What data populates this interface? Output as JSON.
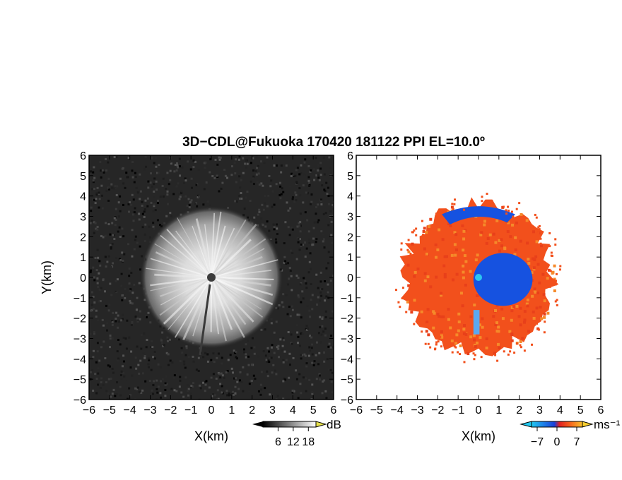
{
  "title": "3D−CDL@Fukuoka 170420 181122 PPI EL=10.0º",
  "chart_data": [
    {
      "type": "heatmap",
      "panel": "reflectivity",
      "xlabel": "X(km)",
      "ylabel": "Y(km)",
      "xlim": [
        -6,
        6
      ],
      "ylim": [
        -6,
        6
      ],
      "xticks": [
        "−6",
        "−5",
        "−4",
        "−3",
        "−2",
        "−1",
        "0",
        "1",
        "2",
        "3",
        "4",
        "5",
        "6"
      ],
      "yticks": [
        "6",
        "5",
        "4",
        "3",
        "2",
        "1",
        "0",
        "−1",
        "−2",
        "−3",
        "−4",
        "−5",
        "−6"
      ],
      "echo_radius_km": 3.5,
      "radar_position": [
        0,
        0
      ],
      "colorscale": "grayscale",
      "colorbar": {
        "unit": "dB",
        "ticks": [
          "6",
          "12",
          "18"
        ],
        "range": [
          0,
          21
        ]
      }
    },
    {
      "type": "heatmap",
      "panel": "doppler_velocity",
      "xlabel": "X(km)",
      "xlim": [
        -6,
        6
      ],
      "ylim": [
        -6,
        6
      ],
      "xticks": [
        "−6",
        "−5",
        "−4",
        "−3",
        "−2",
        "−1",
        "0",
        "1",
        "2",
        "3",
        "4",
        "5",
        "6"
      ],
      "yticks": [
        "6",
        "5",
        "4",
        "3",
        "2",
        "1",
        "0",
        "−1",
        "−2",
        "−3",
        "−4",
        "−5",
        "−6"
      ],
      "echo_radius_km": 4.0,
      "radar_position": [
        0,
        0
      ],
      "colorscale": "blue-red diverging",
      "colorbar": {
        "unit": "ms⁻¹",
        "ticks": [
          "−7",
          "0",
          "7"
        ],
        "range": [
          -9,
          9
        ]
      }
    }
  ],
  "colors": {
    "approaching": "#1652e0",
    "receding": "#f2501c",
    "receding_light": "#f58a2a",
    "center": "#2cc6f0",
    "background_noise": "#262626"
  }
}
